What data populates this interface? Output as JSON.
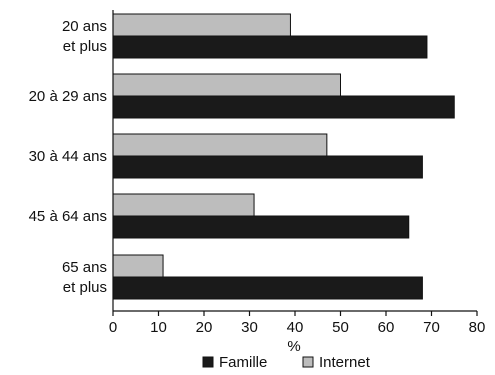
{
  "chart_data": {
    "type": "bar",
    "orientation": "horizontal",
    "categories": [
      [
        "20 ans",
        "et plus"
      ],
      [
        "20 à 29 ans"
      ],
      [
        "30 à 44 ans"
      ],
      [
        "45 à 64 ans"
      ],
      [
        "65 ans",
        "et plus"
      ]
    ],
    "series": [
      {
        "name": "Internet",
        "values": [
          39,
          50,
          47,
          31,
          11
        ],
        "color": "#bdbdbd"
      },
      {
        "name": "Famille",
        "values": [
          69,
          75,
          68,
          65,
          68
        ],
        "color": "#1a1a1a"
      }
    ],
    "xlabel": "%",
    "xlim": [
      0,
      80
    ],
    "xticks": [
      0,
      10,
      20,
      30,
      40,
      50,
      60,
      70,
      80
    ],
    "legend": {
      "placement": "bottom",
      "order": [
        "Famille",
        "Internet"
      ]
    },
    "grid": false
  }
}
